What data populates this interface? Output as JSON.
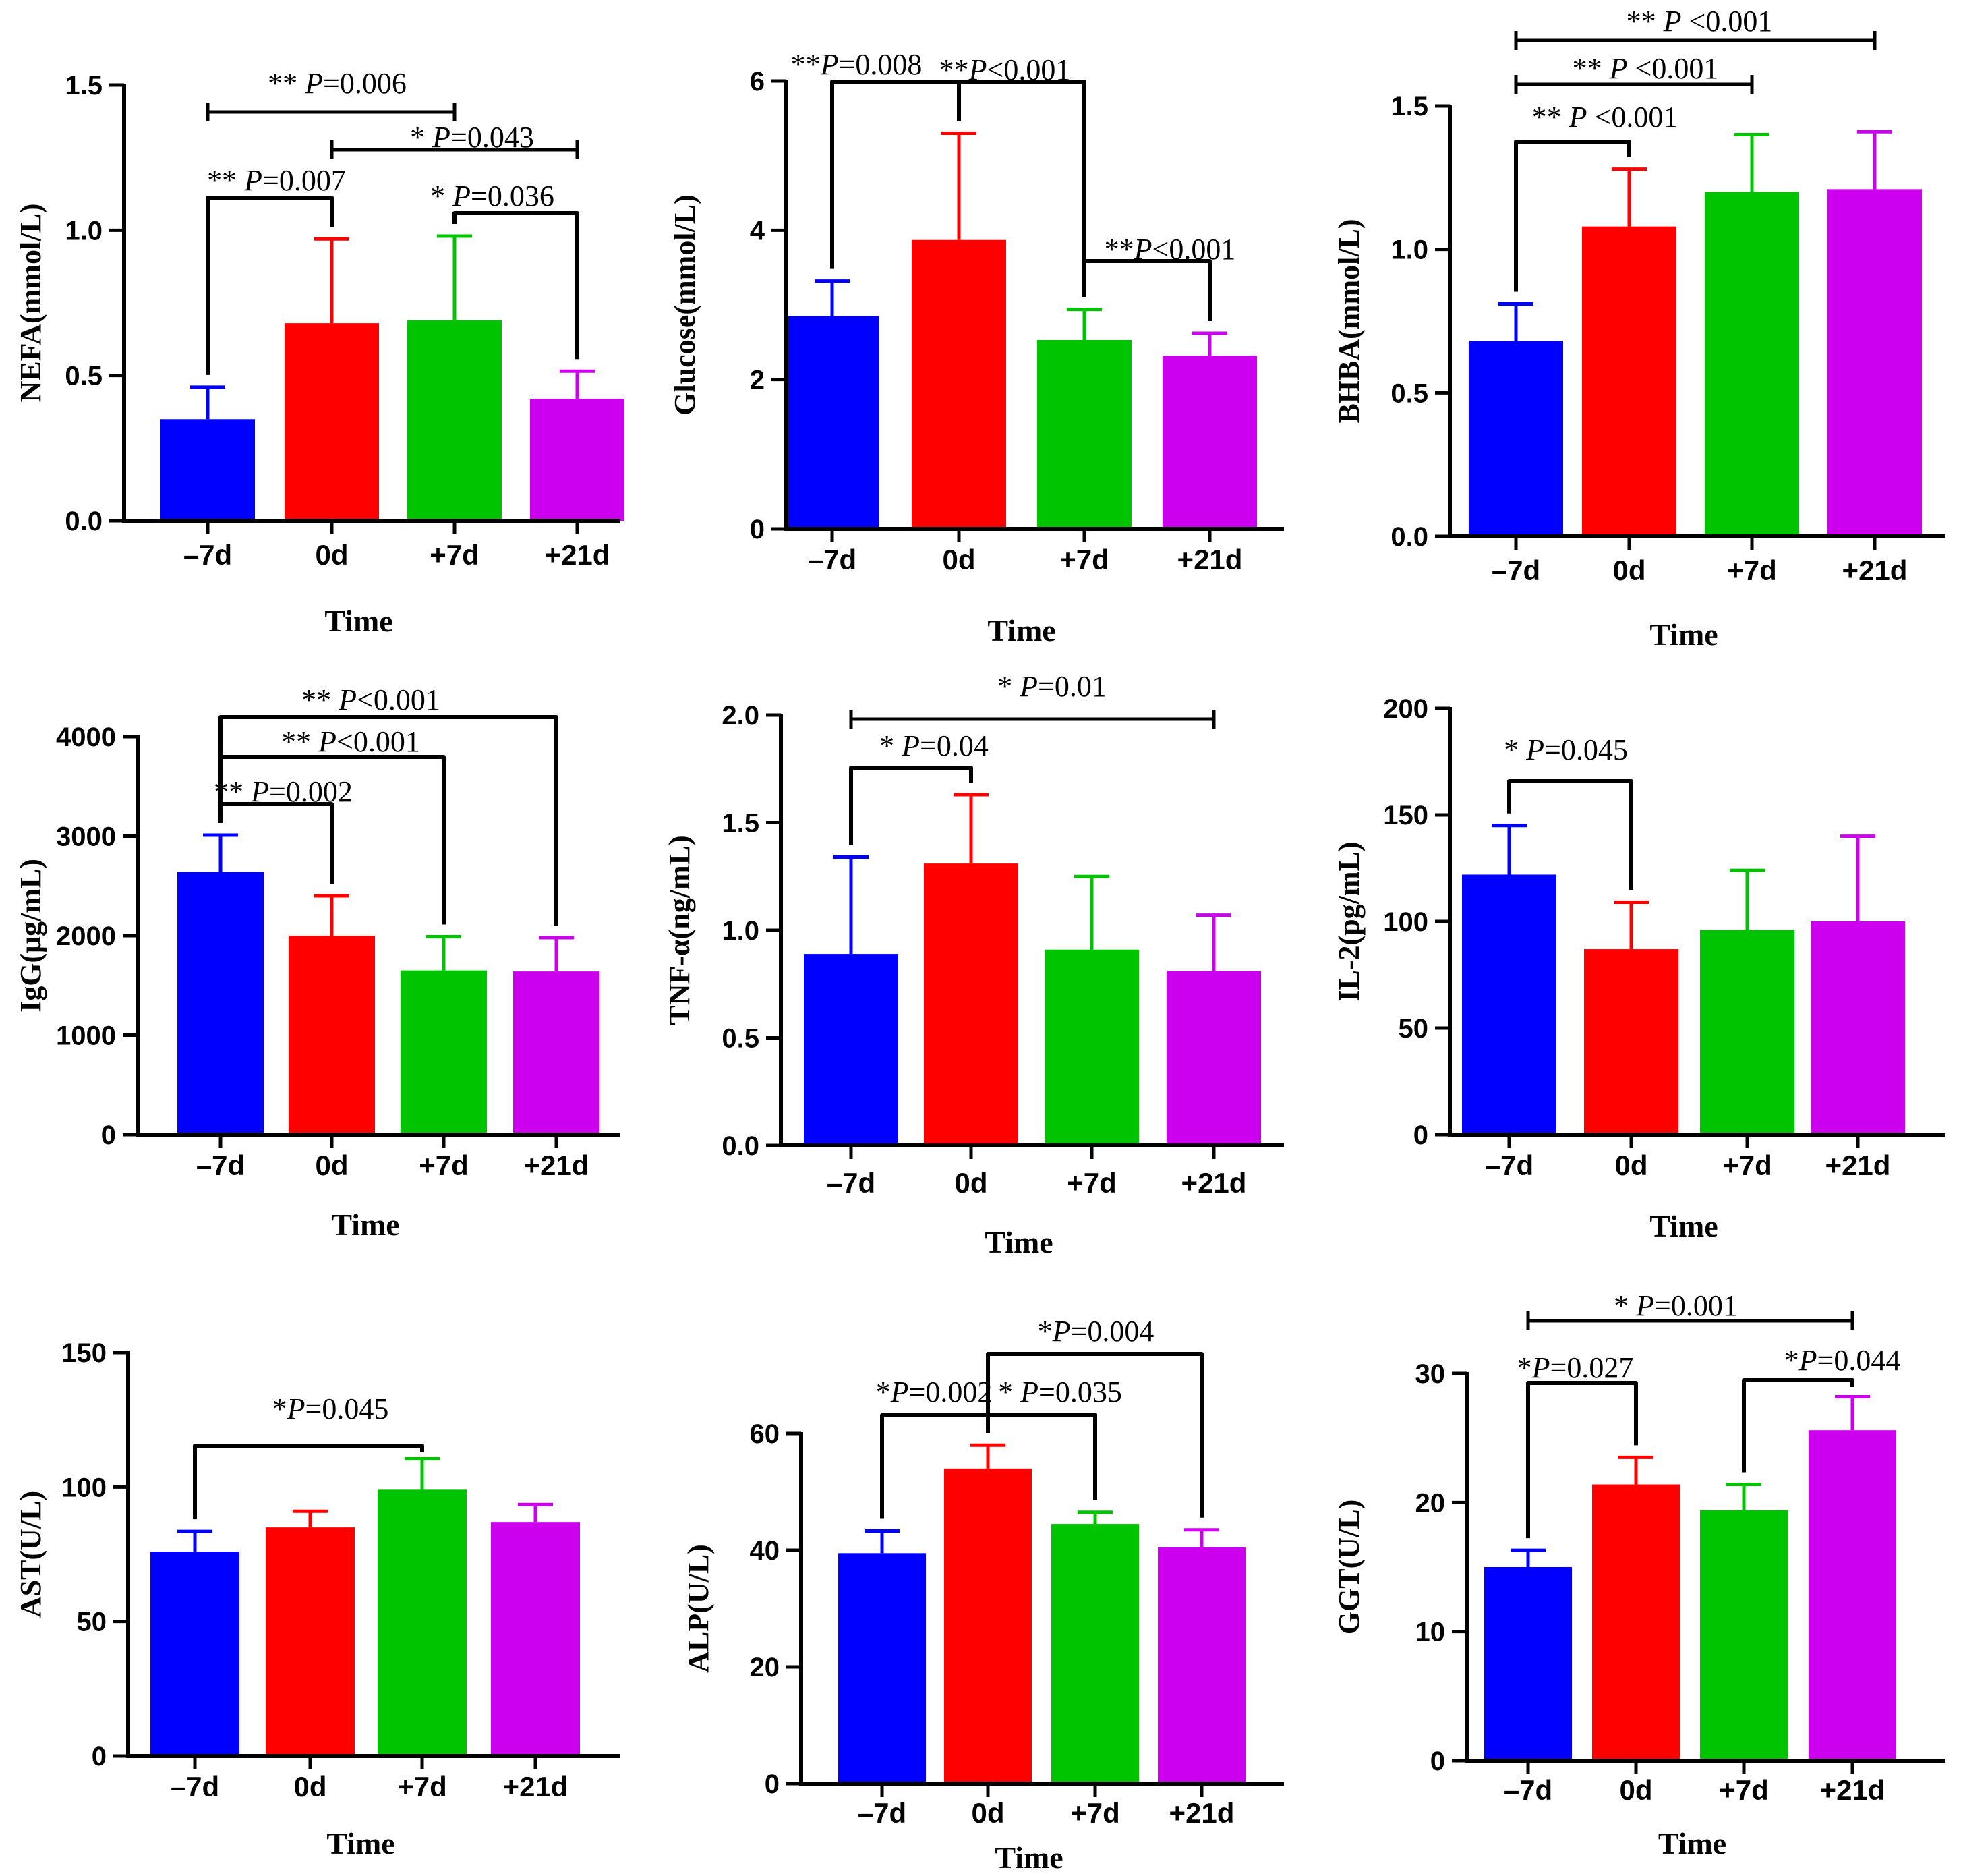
{
  "colors": {
    "-7d": "#0000ff",
    "0d": "#ff0000",
    "+7d": "#00c400",
    "+21d": "#cc00ee",
    "axis": "#000000"
  },
  "chart_data": [
    {
      "type": "bar",
      "title": "",
      "xlabel": "Time",
      "ylabel": "NEFA(mmol/L)",
      "categories": [
        "-7d",
        "0d",
        "+7d",
        "+21d"
      ],
      "values": [
        0.35,
        0.68,
        0.69,
        0.42
      ],
      "errors": [
        0.11,
        0.29,
        0.29,
        0.095
      ],
      "ylim": [
        0,
        1.5
      ],
      "yticks": [
        0,
        0.5,
        1.0,
        1.5
      ],
      "ytick_labels": [
        "0.0",
        "0.5",
        "1.0",
        "1.5"
      ],
      "significance": [
        {
          "from": 0,
          "to": 2,
          "stars": "** ",
          "p": "P",
          "value": "=0.006",
          "kind": "flat"
        },
        {
          "from": 1,
          "to": 3,
          "stars": "* ",
          "p": "P",
          "value": "=0.043",
          "kind": "flat"
        },
        {
          "from": 0,
          "to": 1,
          "stars": "** ",
          "p": "P",
          "value": "=0.007",
          "kind": "bracket"
        },
        {
          "from": 2,
          "to": 3,
          "stars": "* ",
          "p": "P",
          "value": "=0.036",
          "kind": "bracket"
        }
      ]
    },
    {
      "type": "bar",
      "title": "",
      "xlabel": "Time",
      "ylabel": "Glucose(mmol/L)",
      "categories": [
        "-7d",
        "0d",
        "+7d",
        "+21d"
      ],
      "values": [
        2.85,
        3.87,
        2.53,
        2.32
      ],
      "errors": [
        0.47,
        1.43,
        0.41,
        0.3
      ],
      "ylim": [
        0,
        6
      ],
      "yticks": [
        0,
        2,
        4,
        6
      ],
      "ytick_labels": [
        "0",
        "2",
        "4",
        "6"
      ],
      "significance": [
        {
          "from": 0,
          "to": 1,
          "stars": "**",
          "p": "P",
          "value": "=0.008",
          "kind": "bracket"
        },
        {
          "from": 1,
          "to": 2,
          "stars": "**",
          "p": "P",
          "value": "<0.001",
          "kind": "bracket"
        },
        {
          "from": 2,
          "to": 3,
          "stars": "**",
          "p": "P",
          "value": "<0.001",
          "kind": "bracket"
        }
      ]
    },
    {
      "type": "bar",
      "title": "",
      "xlabel": "Time",
      "ylabel": "BHBA(mmol/L)",
      "categories": [
        "-7d",
        "0d",
        "+7d",
        "+21d"
      ],
      "values": [
        0.68,
        1.08,
        1.2,
        1.21
      ],
      "errors": [
        0.13,
        0.2,
        0.2,
        0.2
      ],
      "ylim": [
        0,
        1.5
      ],
      "yticks": [
        0,
        0.5,
        1.0,
        1.5
      ],
      "ytick_labels": [
        "0.0",
        "0.5",
        "1.0",
        "1.5"
      ],
      "significance": [
        {
          "from": 0,
          "to": 3,
          "stars": "** ",
          "p": "P",
          "value": " <0.001",
          "kind": "flat"
        },
        {
          "from": 0,
          "to": 2,
          "stars": "** ",
          "p": "P",
          "value": " <0.001",
          "kind": "flat"
        },
        {
          "from": 0,
          "to": 1,
          "stars": "** ",
          "p": "P",
          "value": " <0.001",
          "kind": "bracket"
        }
      ]
    },
    {
      "type": "bar",
      "title": "",
      "xlabel": "Time",
      "ylabel": "IgG(μg/mL)",
      "categories": [
        "-7d",
        "0d",
        "+7d",
        "+21d"
      ],
      "values": [
        2640,
        2000,
        1650,
        1640
      ],
      "errors": [
        370,
        400,
        340,
        340
      ],
      "ylim": [
        0,
        4000
      ],
      "yticks": [
        0,
        1000,
        2000,
        3000,
        4000
      ],
      "ytick_labels": [
        "0",
        "1000",
        "2000",
        "3000",
        "4000"
      ],
      "significance": [
        {
          "from": 0,
          "to": 3,
          "stars": "** ",
          "p": "P",
          "value": "<0.001",
          "kind": "bracket"
        },
        {
          "from": 0,
          "to": 2,
          "stars": "** ",
          "p": "P",
          "value": "<0.001",
          "kind": "bracket"
        },
        {
          "from": 0,
          "to": 1,
          "stars": "** ",
          "p": "P",
          "value": "=0.002",
          "kind": "bracket"
        }
      ]
    },
    {
      "type": "bar",
      "title": "",
      "xlabel": "Time",
      "ylabel": "TNF-α(ng/mL)",
      "categories": [
        "-7d",
        "0d",
        "+7d",
        "+21d"
      ],
      "values": [
        0.89,
        1.31,
        0.91,
        0.81
      ],
      "errors": [
        0.45,
        0.32,
        0.34,
        0.26
      ],
      "ylim": [
        0,
        2.0
      ],
      "yticks": [
        0,
        0.5,
        1.0,
        1.5,
        2.0
      ],
      "ytick_labels": [
        "0.0",
        "0.5",
        "1.0",
        "1.5",
        "2.0"
      ],
      "significance": [
        {
          "from": 0,
          "to": 3,
          "stars": "*    ",
          "p": "P",
          "value": "=0.01",
          "kind": "flat"
        },
        {
          "from": 0,
          "to": 1,
          "stars": "*  ",
          "p": "P",
          "value": "=0.04",
          "kind": "bracket"
        }
      ]
    },
    {
      "type": "bar",
      "title": "",
      "xlabel": "Time",
      "ylabel": "IL-2(pg/mL)",
      "categories": [
        "-7d",
        "0d",
        "+7d",
        "+21d"
      ],
      "values": [
        122,
        87,
        96,
        100
      ],
      "errors": [
        23,
        22,
        28,
        40
      ],
      "ylim": [
        0,
        200
      ],
      "yticks": [
        0,
        50,
        100,
        150,
        200
      ],
      "ytick_labels": [
        "0",
        "50",
        "100",
        "150",
        "200"
      ],
      "significance": [
        {
          "from": 0,
          "to": 1,
          "stars": "* ",
          "p": "P",
          "value": "=0.045",
          "kind": "bracket"
        }
      ]
    },
    {
      "type": "bar",
      "title": "",
      "xlabel": "Time",
      "ylabel": "AST(U/L)",
      "categories": [
        "-7d",
        "0d",
        "+7d",
        "+21d"
      ],
      "values": [
        76,
        85,
        99,
        87
      ],
      "errors": [
        7.5,
        6,
        11.5,
        6.5
      ],
      "ylim": [
        0,
        150
      ],
      "yticks": [
        0,
        50,
        100,
        150
      ],
      "ytick_labels": [
        "0",
        "50",
        "100",
        "150"
      ],
      "significance": [
        {
          "from": 0,
          "to": 2,
          "stars": "*",
          "p": "P",
          "value": "=0.045",
          "kind": "bracket"
        }
      ]
    },
    {
      "type": "bar",
      "title": "",
      "xlabel": "Time",
      "ylabel": "ALP(U/L)",
      "categories": [
        "-7d",
        "0d",
        "+7d",
        "+21d"
      ],
      "values": [
        39.5,
        54,
        44.5,
        40.5
      ],
      "errors": [
        3.8,
        4,
        2,
        3
      ],
      "ylim": [
        0,
        60
      ],
      "yticks": [
        0,
        20,
        40,
        60
      ],
      "ytick_labels": [
        "0",
        "20",
        "40",
        "60"
      ],
      "significance": [
        {
          "from": 1,
          "to": 3,
          "stars": "*",
          "p": "P",
          "value": "=0.004",
          "kind": "bracket"
        },
        {
          "from": 0,
          "to": 1,
          "stars": "*",
          "p": "P",
          "value": "=0.002",
          "kind": "bracket"
        },
        {
          "from": 1,
          "to": 2,
          "stars": "* ",
          "p": "P",
          "value": "=0.035",
          "kind": "bracket"
        }
      ]
    },
    {
      "type": "bar",
      "title": "",
      "xlabel": "Time",
      "ylabel": "GGT(U/L)",
      "categories": [
        "-7d",
        "0d",
        "+7d",
        "+21d"
      ],
      "values": [
        15,
        21.4,
        19.4,
        25.6
      ],
      "errors": [
        1.3,
        2.1,
        2,
        2.6
      ],
      "ylim": [
        0,
        30
      ],
      "yticks": [
        0,
        10,
        20,
        30
      ],
      "ytick_labels": [
        "0",
        "10",
        "20",
        "30"
      ],
      "significance": [
        {
          "from": 0,
          "to": 3,
          "stars": "* ",
          "p": "P",
          "value": "=0.001",
          "kind": "flat"
        },
        {
          "from": 0,
          "to": 1,
          "stars": "*",
          "p": "P",
          "value": "=0.027",
          "kind": "bracket"
        },
        {
          "from": 2,
          "to": 3,
          "stars": "*",
          "p": "P",
          "value": "=0.044",
          "kind": "bracket"
        }
      ]
    }
  ]
}
